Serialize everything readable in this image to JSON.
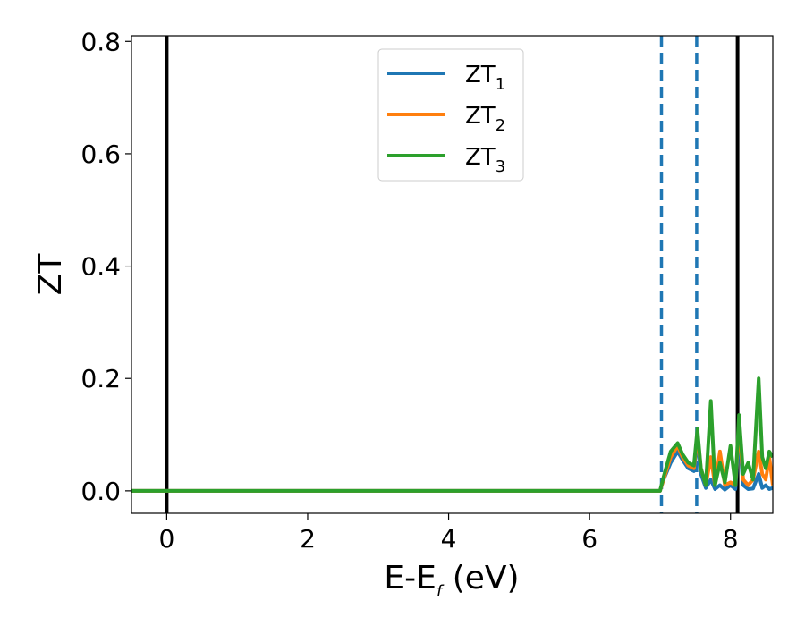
{
  "chart_data": {
    "type": "line",
    "xlabel_main": "E-E",
    "xlabel_sub": "f",
    "xlabel_unit": " (eV)",
    "ylabel": "ZT",
    "xlim": [
      -0.5,
      8.6
    ],
    "ylim": [
      -0.04,
      0.81
    ],
    "xticks": [
      0,
      2,
      4,
      6,
      8
    ],
    "xtick_labels": [
      "0",
      "2",
      "4",
      "6",
      "8"
    ],
    "yticks": [
      0.0,
      0.2,
      0.4,
      0.6,
      0.8
    ],
    "ytick_labels": [
      "0.0",
      "0.2",
      "0.4",
      "0.6",
      "0.8"
    ],
    "grid": false,
    "legend_position": "top-center",
    "vlines": [
      {
        "x": 0.0,
        "style": "solid",
        "color": "#000000"
      },
      {
        "x": 8.1,
        "style": "solid",
        "color": "#000000"
      },
      {
        "x": 7.02,
        "style": "dashed",
        "color": "#1f77b4"
      },
      {
        "x": 7.52,
        "style": "dashed",
        "color": "#1f77b4"
      }
    ],
    "series": [
      {
        "name_main": "ZT",
        "name_sub": "1",
        "color": "#1f77b4",
        "x": [
          -0.5,
          7.0,
          7.05,
          7.15,
          7.25,
          7.32,
          7.4,
          7.48,
          7.53,
          7.58,
          7.65,
          7.72,
          7.78,
          7.85,
          7.92,
          8.0,
          8.07,
          8.12,
          8.18,
          8.25,
          8.32,
          8.4,
          8.45,
          8.5,
          8.55,
          8.6
        ],
        "y": [
          0.0,
          0.0,
          0.02,
          0.05,
          0.07,
          0.055,
          0.04,
          0.035,
          0.09,
          0.03,
          0.005,
          0.02,
          0.003,
          0.01,
          0.002,
          0.01,
          0.003,
          0.1,
          0.01,
          0.003,
          0.004,
          0.03,
          0.005,
          0.01,
          0.003,
          0.005
        ]
      },
      {
        "name_main": "ZT",
        "name_sub": "2",
        "color": "#ff7f0e",
        "x": [
          -0.5,
          7.0,
          7.05,
          7.15,
          7.25,
          7.32,
          7.4,
          7.48,
          7.53,
          7.58,
          7.65,
          7.72,
          7.78,
          7.85,
          7.92,
          8.0,
          8.07,
          8.12,
          8.18,
          8.25,
          8.32,
          8.4,
          8.45,
          8.5,
          8.55,
          8.6
        ],
        "y": [
          0.0,
          0.0,
          0.02,
          0.06,
          0.08,
          0.06,
          0.045,
          0.04,
          0.1,
          0.04,
          0.01,
          0.06,
          0.01,
          0.07,
          0.01,
          0.015,
          0.01,
          0.12,
          0.02,
          0.01,
          0.02,
          0.07,
          0.03,
          0.02,
          0.06,
          0.01
        ]
      },
      {
        "name_main": "ZT",
        "name_sub": "3",
        "color": "#2ca02c",
        "x": [
          -0.5,
          7.0,
          7.05,
          7.15,
          7.25,
          7.32,
          7.4,
          7.48,
          7.53,
          7.58,
          7.65,
          7.72,
          7.78,
          7.85,
          7.92,
          8.0,
          8.07,
          8.12,
          8.18,
          8.25,
          8.32,
          8.4,
          8.45,
          8.5,
          8.55,
          8.6
        ],
        "y": [
          0.0,
          0.0,
          0.025,
          0.07,
          0.085,
          0.065,
          0.05,
          0.045,
          0.11,
          0.04,
          0.01,
          0.16,
          0.01,
          0.05,
          0.015,
          0.08,
          0.01,
          0.135,
          0.03,
          0.05,
          0.02,
          0.2,
          0.06,
          0.04,
          0.07,
          0.06
        ]
      }
    ]
  }
}
